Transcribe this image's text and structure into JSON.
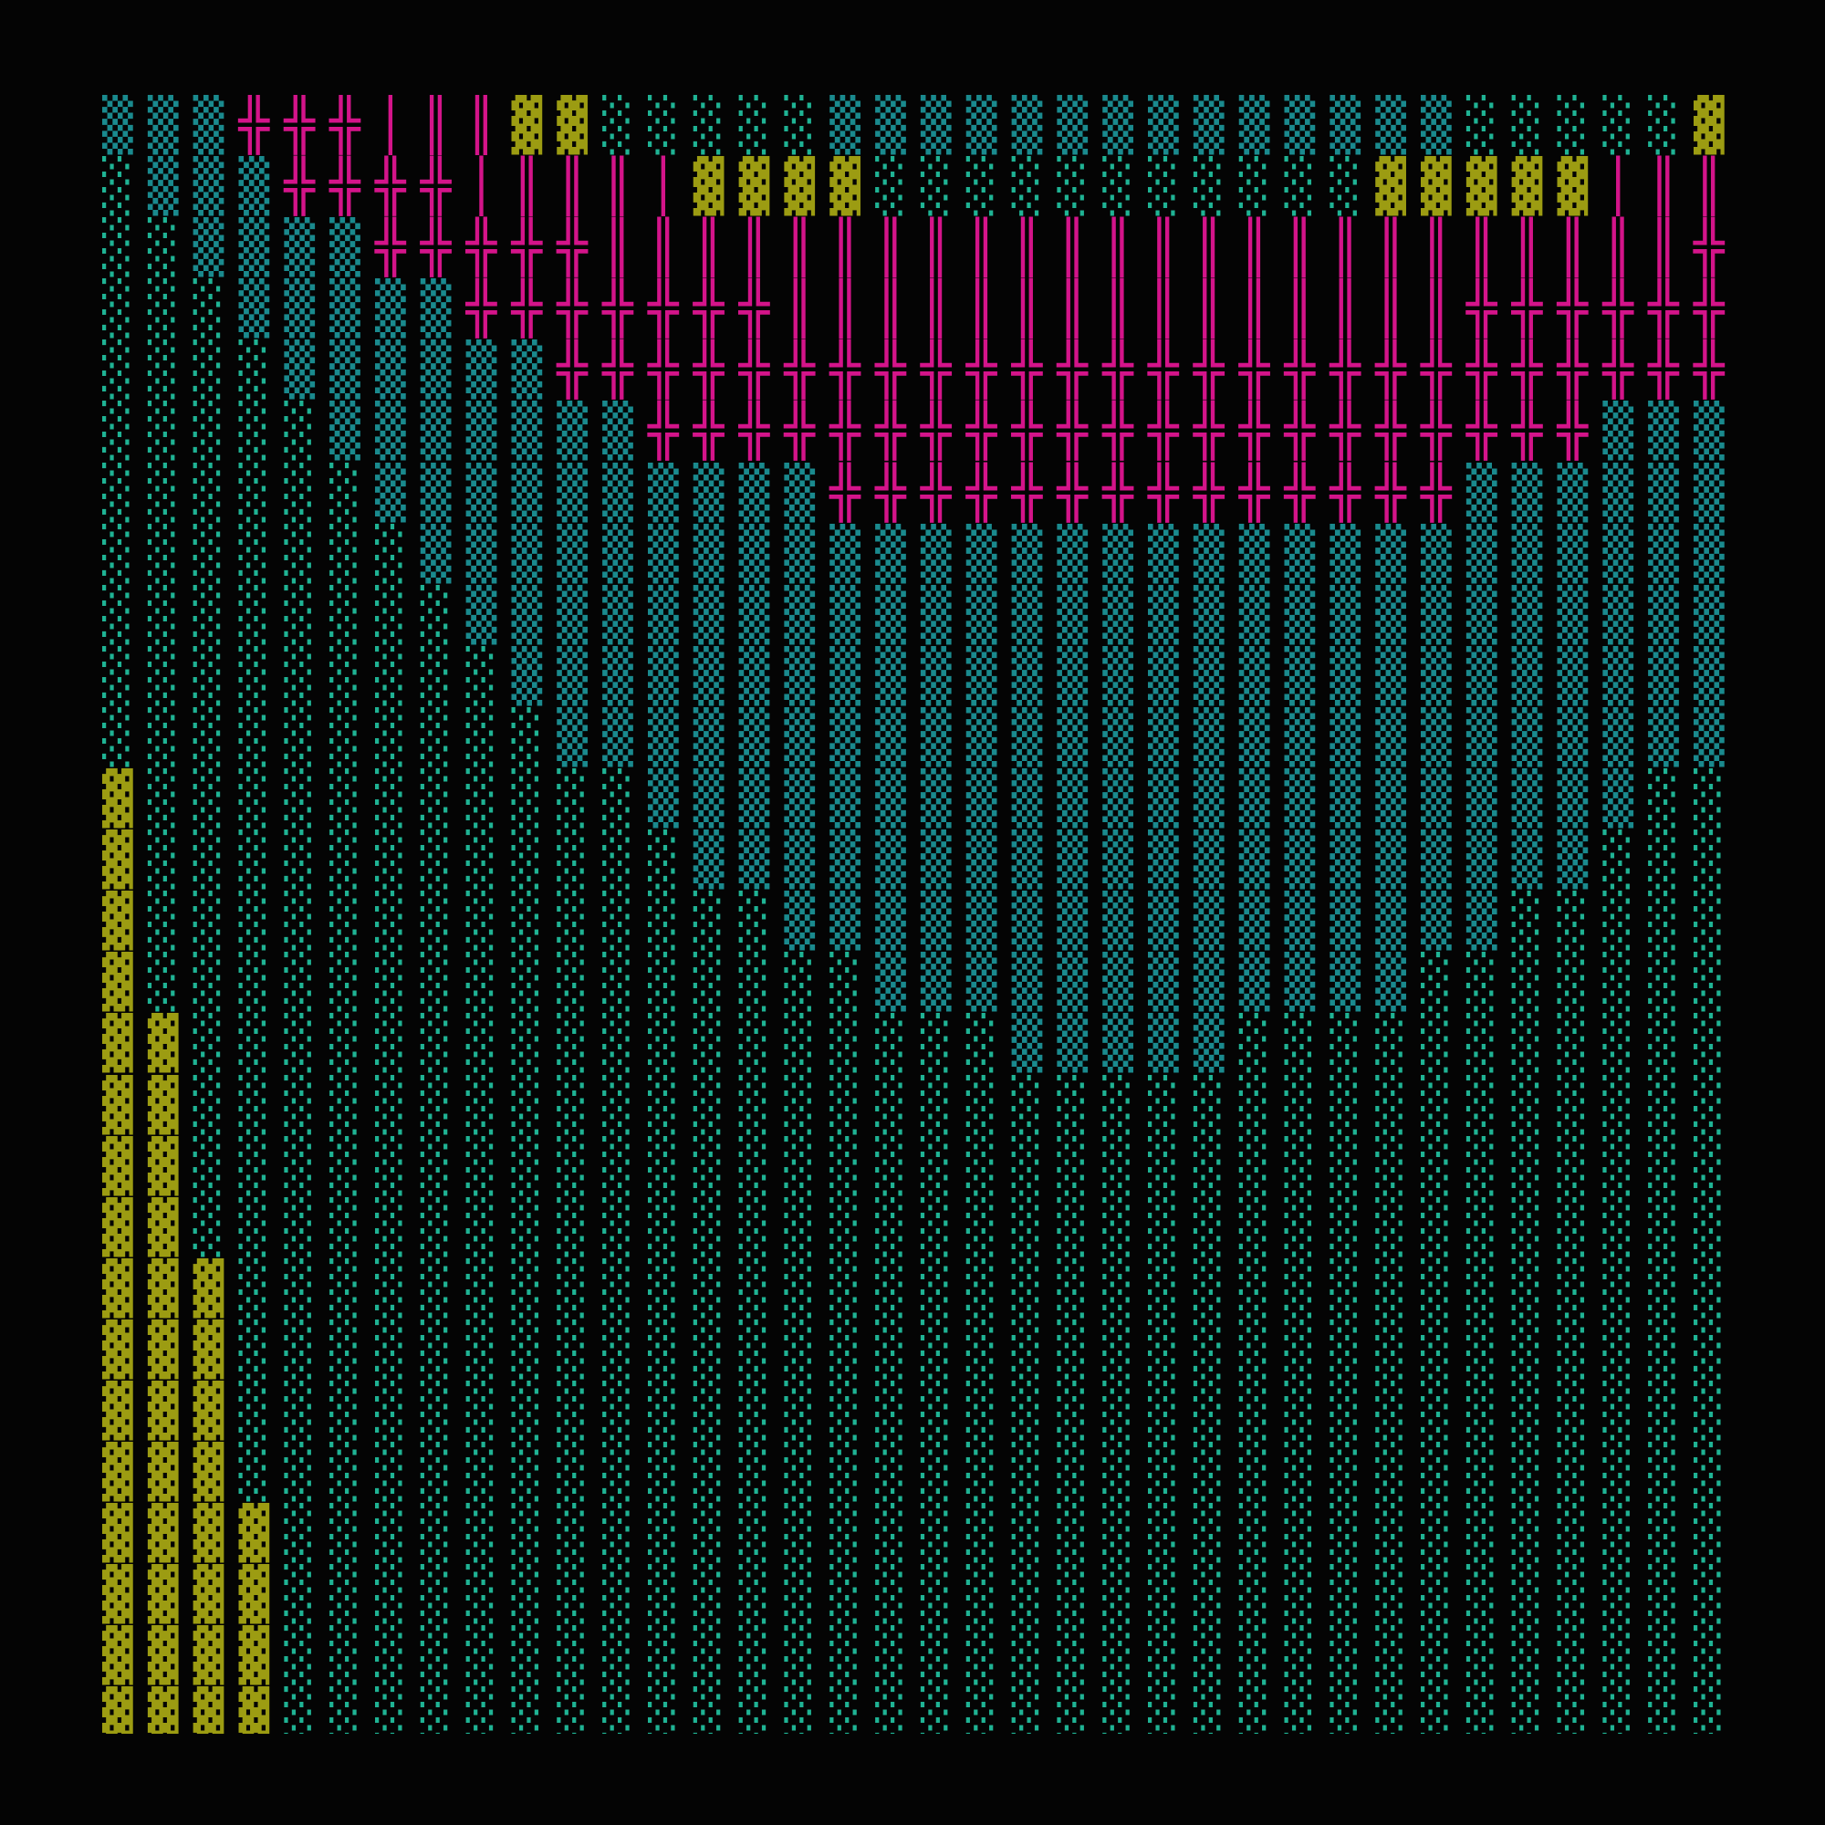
{
  "rows": [
    "▒▒▒╬╬╬│║║▓▓░░░░░▒▒▒▒▒▒▒▒▒▒▒▒▒▒░░░░░▓▓",
    "░▒▒▒╬╬╬╬│║║║│▓▓▓▓░░░░░░░░░░░▓▓▓▓▓│║║║",
    "░░▒▒▒▒╬╬╬╬╬║║║║║║║║║║║║║║║║║║║║║║║║╬╬",
    "░░░▒▒▒▒▒╬╬╬╬╬╬╬║║║║║║║║║║║║║║║╬╬╬╬╬╬╬",
    "░░░░▒▒▒▒▒▒╬╬╬╬╬╬╬╬╬╬╬╬╬╬╬╬╬╬╬╬╬╬╬╬╬╬▒",
    "░░░░░▒▒▒▒▒▒▒╬╬╬╬╬╬╬╬╬╬╬╬╬╬╬╬╬╬╬╬╬▒▒▒▒",
    "░░░░░░▒▒▒▒▒▒▒▒▒▒╬╬╬╬╬╬╬╬╬╬╬╬╬╬▒▒▒▒▒▒▒",
    "░░░░░░░▒▒▒▒▒▒▒▒▒▒▒▒▒▒▒▒▒▒▒▒▒▒▒▒▒▒▒▒▒▒",
    "░░░░░░░░▒▒▒▒▒▒▒▒▒▒▒▒▒▒▒▒▒▒▒▒▒▒▒▒▒▒▒▒▒",
    "░░░░░░░░░▒▒▒▒▒▒▒▒▒▒▒▒▒▒▒▒▒▒▒▒▒▒▒▒▒▒▒▒",
    "░░░░░░░░░░▒▒▒▒▒▒▒▒▒▒▒▒▒▒▒▒▒▒▒▒▒▒▒▒▒▒░",
    "▓░░░░░░░░░░░▒▒▒▒▒▒▒▒▒▒▒▒▒▒▒▒▒▒▒▒▒▒░░░",
    "▓░░░░░░░░░░░░▒▒▒▒▒▒▒▒▒▒▒▒▒▒▒▒▒▒▒▒░░░░",
    "▓░░░░░░░░░░░░░░▒▒▒▒▒▒▒▒▒▒▒▒▒▒▒▒░░░░░░",
    "▓░░░░░░░░░░░░░░░░▒▒▒▒▒▒▒▒▒▒▒▒░░░░░░░░",
    "▓▓░░░░░░░░░░░░░░░░░░▒▒▒▒▒░░░░░░░░░░░░",
    "▓▓░░░░░░░░░░░░░░░░░░░░░░░░░░░░░░░░░░░",
    "▓▓░░░░░░░░░░░░░░░░░░░░░░░░░░░░░░░░░░░",
    "▓▓░░░░░░░░░░░░░░░░░░░░░░░░░░░░░░░░░░░",
    "▓▓▓░░░░░░░░░░░░░░░░░░░░░░░░░░░░░░░░░░",
    "▓▓▓░░░░░░░░░░░░░░░░░░░░░░░░░░░░░░░░░░",
    "▓▓▓░░░░░░░░░░░░░░░░░░░░░░░░░░░░░░░░░░",
    "▓▓▓░░░░░░░░░░░░░░░░░░░░░░░░░░░░░░░░░░",
    "▓▓▓▓░░░░░░░░░░░░░░░░░░░░░░░░░░░░░░░░░",
    "▓▓▓▓░░░░░░░░░░░░░░░░░░░░░░░░░░░░░░░░░",
    "▓▓▓▓░░░░░░░░░░░░░░░░░░░░░░░░░░░░░░░░░",
    "▓▓▓▓░░░░░░░░░░░░░░░░░░░░░░░░░░░░░░░░░"
  ],
  "palette": {
    "░": "#1fb394",
    "▒": "#1a8a8e",
    "▓": "#9c9c12",
    "╬": "#d4148a",
    "║": "#d4148a",
    "│": "#d4148a"
  }
}
